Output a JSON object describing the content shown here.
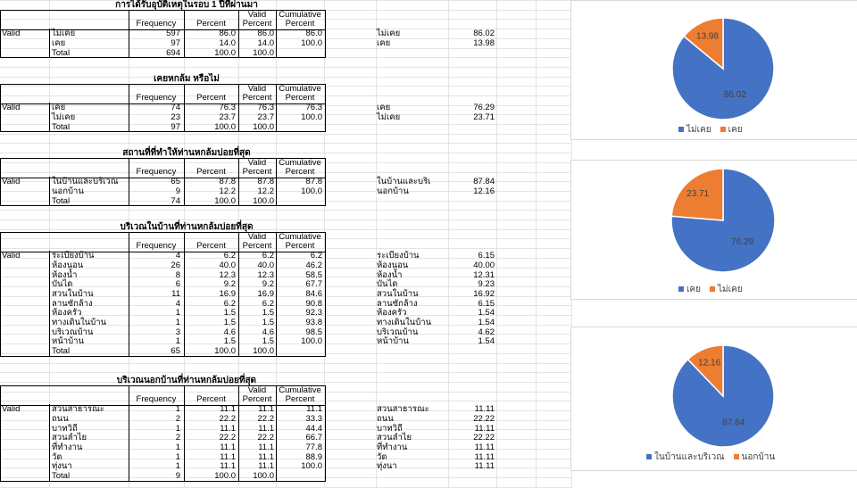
{
  "colors": {
    "blue": "#4472c4",
    "orange": "#ed7d31",
    "grid": "#e4e4e4",
    "border": "#000000"
  },
  "headers": {
    "frequency": "Frequency",
    "percent": "Percent",
    "valid_percent": [
      "Valid",
      "Percent"
    ],
    "cumulative_percent": [
      "Cumulative",
      "Percent"
    ]
  },
  "tables": [
    {
      "title": "การได้รับอุบัติเหตุในรอบ 1 ปีที่ผ่านมา",
      "group": "Valid",
      "rows": [
        {
          "label": "ไม่เคย",
          "freq": "597",
          "pct": "86.0",
          "vpct": "86.0",
          "cpct": "86.0"
        },
        {
          "label": "เคย",
          "freq": "97",
          "pct": "14.0",
          "vpct": "14.0",
          "cpct": "100.0"
        },
        {
          "label": "Total",
          "freq": "694",
          "pct": "100.0",
          "vpct": "100.0",
          "cpct": ""
        }
      ],
      "side": [
        {
          "label": "ไม่เคย",
          "value": "86.02"
        },
        {
          "label": "เคย",
          "value": "13.98"
        }
      ]
    },
    {
      "title": "เคยหกล้ม หรือไม่",
      "group": "Valid",
      "rows": [
        {
          "label": "เคย",
          "freq": "74",
          "pct": "76.3",
          "vpct": "76.3",
          "cpct": "76.3"
        },
        {
          "label": "ไม่เคย",
          "freq": "23",
          "pct": "23.7",
          "vpct": "23.7",
          "cpct": "100.0"
        },
        {
          "label": "Total",
          "freq": "97",
          "pct": "100.0",
          "vpct": "100.0",
          "cpct": ""
        }
      ],
      "side": [
        {
          "label": "เคย",
          "value": "76.29"
        },
        {
          "label": "ไม่เคย",
          "value": "23.71"
        }
      ]
    },
    {
      "title": "สถานที่ที่ทำให้ท่านหกล้มบ่อยที่สุด",
      "group": "Valid",
      "rows": [
        {
          "label": "ในบ้านและบริเวณ",
          "freq": "65",
          "pct": "87.8",
          "vpct": "87.8",
          "cpct": "87.8"
        },
        {
          "label": "นอกบ้าน",
          "freq": "9",
          "pct": "12.2",
          "vpct": "12.2",
          "cpct": "100.0"
        },
        {
          "label": "Total",
          "freq": "74",
          "pct": "100.0",
          "vpct": "100.0",
          "cpct": ""
        }
      ],
      "side": [
        {
          "label": "ในบ้านและบริเ",
          "value": "87.84"
        },
        {
          "label": "นอกบ้าน",
          "value": "12.16"
        }
      ]
    },
    {
      "title": "บริเวณในบ้านที่ท่านหกล้มบ่อยที่สุด",
      "group": "Valid",
      "rows": [
        {
          "label": "ระเบียงบ้าน",
          "freq": "4",
          "pct": "6.2",
          "vpct": "6.2",
          "cpct": "6.2"
        },
        {
          "label": "ห้องนอน",
          "freq": "26",
          "pct": "40.0",
          "vpct": "40.0",
          "cpct": "46.2"
        },
        {
          "label": "ห้องน้ำ",
          "freq": "8",
          "pct": "12.3",
          "vpct": "12.3",
          "cpct": "58.5"
        },
        {
          "label": "บันได",
          "freq": "6",
          "pct": "9.2",
          "vpct": "9.2",
          "cpct": "67.7"
        },
        {
          "label": "สวนในบ้าน",
          "freq": "11",
          "pct": "16.9",
          "vpct": "16.9",
          "cpct": "84.6"
        },
        {
          "label": "ลานซักล้าง",
          "freq": "4",
          "pct": "6.2",
          "vpct": "6.2",
          "cpct": "90.8"
        },
        {
          "label": "ห้องครัว",
          "freq": "1",
          "pct": "1.5",
          "vpct": "1.5",
          "cpct": "92.3"
        },
        {
          "label": "ทางเดินในบ้าน",
          "freq": "1",
          "pct": "1.5",
          "vpct": "1.5",
          "cpct": "93.8"
        },
        {
          "label": "บริเวณบ้าน",
          "freq": "3",
          "pct": "4.6",
          "vpct": "4.6",
          "cpct": "98.5"
        },
        {
          "label": "หน้าบ้าน",
          "freq": "1",
          "pct": "1.5",
          "vpct": "1.5",
          "cpct": "100.0"
        },
        {
          "label": "Total",
          "freq": "65",
          "pct": "100.0",
          "vpct": "100.0",
          "cpct": ""
        }
      ],
      "side": [
        {
          "label": "ระเบียงบ้าน",
          "value": "6.15"
        },
        {
          "label": "ห้องนอน",
          "value": "40.00"
        },
        {
          "label": "ห้องน้ำ",
          "value": "12.31"
        },
        {
          "label": "บันได",
          "value": "9.23"
        },
        {
          "label": "สวนในบ้าน",
          "value": "16.92"
        },
        {
          "label": "ลานซักล้าง",
          "value": "6.15"
        },
        {
          "label": "ห้องครัว",
          "value": "1.54"
        },
        {
          "label": "ทางเดินในบ้าน",
          "value": "1.54"
        },
        {
          "label": "บริเวณบ้าน",
          "value": "4.62"
        },
        {
          "label": "หน้าบ้าน",
          "value": "1.54"
        }
      ]
    },
    {
      "title": "บริเวณนอกบ้านที่ท่านหกล้มบ่อยที่สุด",
      "group": "Valid",
      "rows": [
        {
          "label": "สวนสาธารณะ",
          "freq": "1",
          "pct": "11.1",
          "vpct": "11.1",
          "cpct": "11.1"
        },
        {
          "label": "ถนน",
          "freq": "2",
          "pct": "22.2",
          "vpct": "22.2",
          "cpct": "33.3"
        },
        {
          "label": "บาทวิถี",
          "freq": "1",
          "pct": "11.1",
          "vpct": "11.1",
          "cpct": "44.4"
        },
        {
          "label": "สวนลำไย",
          "freq": "2",
          "pct": "22.2",
          "vpct": "22.2",
          "cpct": "66.7"
        },
        {
          "label": "ที่ทำงาน",
          "freq": "1",
          "pct": "11.1",
          "vpct": "11.1",
          "cpct": "77.8"
        },
        {
          "label": "วัด",
          "freq": "1",
          "pct": "11.1",
          "vpct": "11.1",
          "cpct": "88.9"
        },
        {
          "label": "ทุ่งนา",
          "freq": "1",
          "pct": "11.1",
          "vpct": "11.1",
          "cpct": "100.0"
        },
        {
          "label": "Total",
          "freq": "9",
          "pct": "100.0",
          "vpct": "100.0",
          "cpct": ""
        }
      ],
      "side": [
        {
          "label": "สวนสาธารณะ",
          "value": "11.11"
        },
        {
          "label": "ถนน",
          "value": "22.22"
        },
        {
          "label": "บาทวิถี",
          "value": "11.11"
        },
        {
          "label": "สวนลำไย",
          "value": "22.22"
        },
        {
          "label": "ที่ทำงาน",
          "value": "11.11"
        },
        {
          "label": "วัด",
          "value": "11.11"
        },
        {
          "label": "ทุ่งนา",
          "value": "11.11"
        }
      ]
    }
  ],
  "chart_data": [
    {
      "type": "pie",
      "categories": [
        "ไม่เคย",
        "เคย"
      ],
      "values": [
        86.02,
        13.98
      ],
      "data_labels": [
        "86.02",
        "13.98"
      ],
      "colors": [
        "#4472c4",
        "#ed7d31"
      ],
      "legend": "bottom"
    },
    {
      "type": "pie",
      "categories": [
        "เคย",
        "ไม่เคย"
      ],
      "values": [
        76.29,
        23.71
      ],
      "data_labels": [
        "76.29",
        "23.71"
      ],
      "colors": [
        "#4472c4",
        "#ed7d31"
      ],
      "legend": "bottom"
    },
    {
      "type": "pie",
      "categories": [
        "ในบ้านและบริเวณ",
        "นอกบ้าน"
      ],
      "values": [
        87.84,
        12.16
      ],
      "data_labels": [
        "87.84",
        "12.16"
      ],
      "colors": [
        "#4472c4",
        "#ed7d31"
      ],
      "legend": "bottom"
    }
  ]
}
